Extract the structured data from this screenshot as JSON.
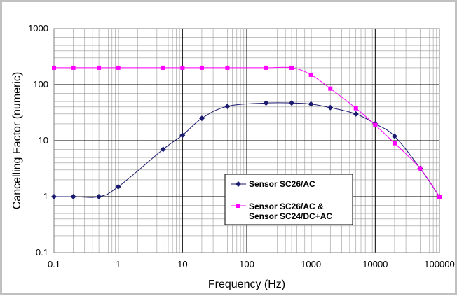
{
  "chart_data": {
    "type": "line",
    "title": "",
    "xlabel": "Frequency (Hz)",
    "ylabel": "Cancelling Factor (numeric)",
    "xscale": "log",
    "yscale": "log",
    "xlim": [
      0.1,
      100000
    ],
    "ylim": [
      0.1,
      1000
    ],
    "grid": true,
    "x_tick_labels": [
      "0.1",
      "1",
      "10",
      "100",
      "1000",
      "10000",
      "100000"
    ],
    "y_tick_labels": [
      "0.1",
      "1",
      "10",
      "100",
      "1000"
    ],
    "legend_position": "center-right",
    "series": [
      {
        "name": "Sensor SC26/AC",
        "color": "#1a1a6e",
        "marker": "diamond",
        "x": [
          0.1,
          0.2,
          0.5,
          1,
          5,
          10,
          20,
          50,
          200,
          500,
          1000,
          2000,
          5000,
          10000,
          20000,
          50000,
          100000
        ],
        "y": [
          1,
          1,
          1,
          1.5,
          7,
          12.5,
          25,
          41,
          47,
          47,
          45,
          39,
          30,
          20,
          12,
          3.2,
          1
        ]
      },
      {
        "name": "Sensor SC26/AC &\nSensor SC24/DC+AC",
        "legend_lines": [
          "Sensor SC26/AC &",
          "Sensor SC24/DC+AC"
        ],
        "color": "#ff00ff",
        "marker": "square",
        "x": [
          0.1,
          0.2,
          0.5,
          1,
          5,
          10,
          20,
          50,
          200,
          500,
          1000,
          2000,
          5000,
          10000,
          20000,
          50000,
          100000
        ],
        "y": [
          200,
          200,
          200,
          200,
          200,
          200,
          200,
          200,
          200,
          200,
          150,
          85,
          38,
          19,
          9,
          3.2,
          1
        ]
      }
    ]
  }
}
